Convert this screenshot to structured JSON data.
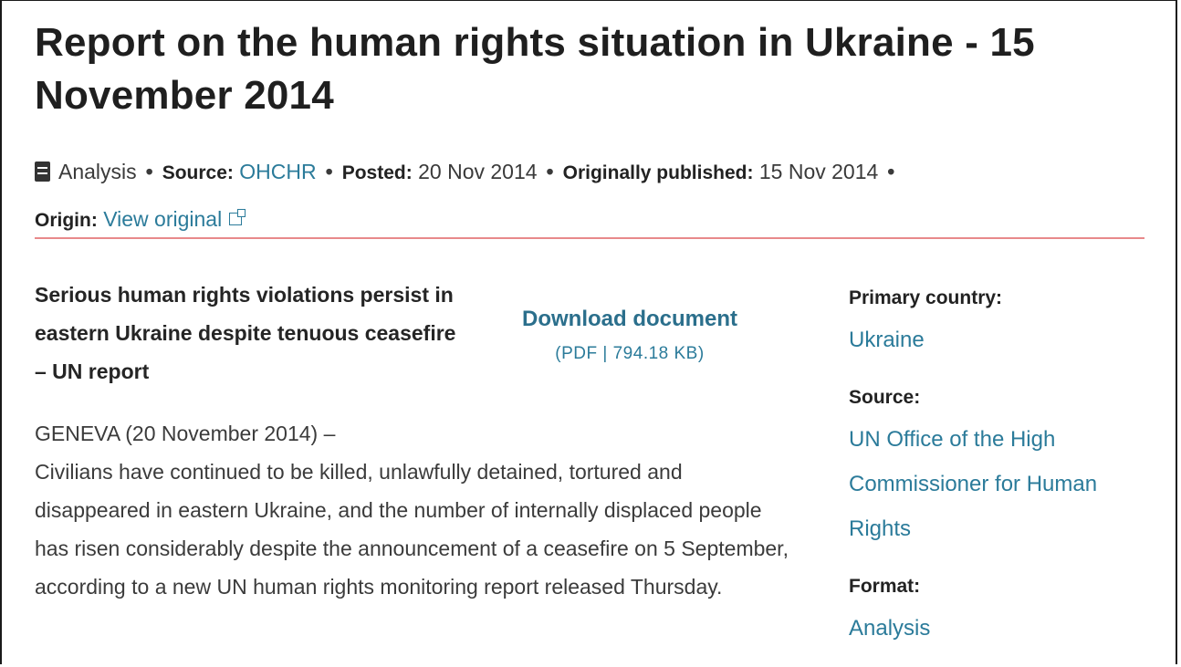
{
  "title": "Report on the human rights situation in Ukraine - 15 November 2014",
  "meta": {
    "type_label": "Analysis",
    "source_label": "Source:",
    "source_value": "OHCHR",
    "posted_label": "Posted:",
    "posted_value": "20 Nov 2014",
    "published_label": "Originally published:",
    "published_value": "15 Nov 2014",
    "origin_label": "Origin:",
    "origin_value": "View original",
    "separator": "•"
  },
  "colors": {
    "link": "#2b7b9a",
    "divider": "#e8898b",
    "text": "#3b3b3b"
  },
  "icons": {
    "type": "document-icon",
    "origin": "external-link-icon"
  },
  "lead": "Serious human rights violations persist in eastern Ukraine despite tenuous ceasefire – UN report",
  "download": {
    "label": "Download document",
    "info": "(PDF | 794.18 KB)"
  },
  "body": {
    "dateline": "GENEVA (20 November 2014) –",
    "paragraph": "Civilians have continued to be killed, unlawfully detained, tortured and disappeared in eastern Ukraine, and the number of internally displaced people has risen considerably despite the announcement of a ceasefire on 5 September, according to a new UN human rights monitoring report released Thursday."
  },
  "sidebar": {
    "country_label": "Primary country:",
    "country_value": "Ukraine",
    "source_label": "Source:",
    "source_value": "UN Office of the High Commissioner for Human Rights",
    "format_label": "Format:",
    "format_value": "Analysis"
  }
}
